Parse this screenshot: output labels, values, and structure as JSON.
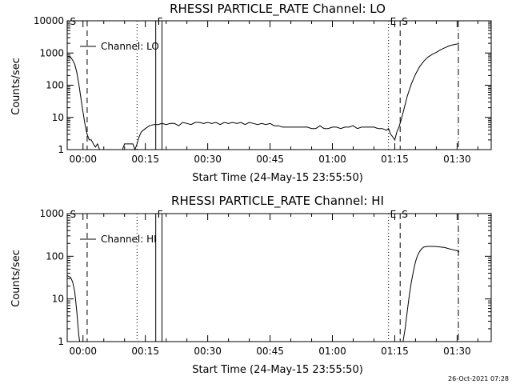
{
  "footer": {
    "date_stamp": "26-Oct-2021 07:28"
  },
  "chart_data": [
    {
      "type": "line",
      "title": "RHESSI PARTICLE_RATE Channel: LO",
      "xlabel": "Start Time (24-May-15 23:55:50)",
      "ylabel": "Counts/sec",
      "yscale": "log",
      "ylim": [
        1,
        10000
      ],
      "xlim_minutes": [
        -3.8,
        98.2
      ],
      "x_tick_labels": [
        "00:00",
        "00:15",
        "00:30",
        "00:45",
        "01:00",
        "01:15",
        "01:30"
      ],
      "x_tick_minutes": [
        0,
        15,
        30,
        45,
        60,
        75,
        90
      ],
      "y_tick_labels": [
        "1",
        "10",
        "100",
        "1000",
        "10000"
      ],
      "legend": {
        "label": "Channel: LO",
        "position": "top-left"
      },
      "event_markers": [
        {
          "label": "S",
          "minute": -3.5,
          "style": "none"
        },
        {
          "label": "",
          "minute": 1.0,
          "style": "dashed"
        },
        {
          "label": "",
          "minute": 13.0,
          "style": "dotted"
        },
        {
          "label": "F",
          "minute": 17.5,
          "style": "solid"
        },
        {
          "label": "",
          "minute": 19.0,
          "style": "solid"
        },
        {
          "label": "E",
          "minute": 73.5,
          "style": "dotted"
        },
        {
          "label": "S",
          "minute": 76.3,
          "style": "dashed"
        },
        {
          "label": "",
          "minute": 90.3,
          "style": "dashdot"
        }
      ],
      "series": [
        {
          "name": "Channel: LO",
          "segments": [
            [
              [
                -3.8,
                800
              ],
              [
                -3,
                750
              ],
              [
                -2.5,
                600
              ],
              [
                -2,
                450
              ],
              [
                -1.5,
                250
              ],
              [
                -1,
                110
              ],
              [
                -0.5,
                40
              ],
              [
                0,
                15
              ],
              [
                0.5,
                6
              ],
              [
                1,
                3
              ],
              [
                1.5,
                2
              ],
              [
                2,
                2
              ],
              [
                2.5,
                1.5
              ],
              [
                3,
                1.2
              ],
              [
                3.5,
                1.5
              ],
              [
                4,
                1
              ],
              [
                4.5,
                1
              ],
              [
                5,
                1
              ],
              [
                5.5,
                1
              ]
            ],
            [
              [
                9.5,
                1
              ],
              [
                10,
                1.5
              ],
              [
                11,
                1.5
              ],
              [
                12,
                1.5
              ],
              [
                12.5,
                1
              ],
              [
                13,
                1.5
              ],
              [
                13.5,
                2.5
              ],
              [
                14,
                3.5
              ],
              [
                14.5,
                4
              ],
              [
                15,
                4.5
              ],
              [
                15.5,
                5
              ],
              [
                16,
                5.5
              ],
              [
                17,
                6
              ],
              [
                18,
                6
              ],
              [
                19,
                6.5
              ],
              [
                20,
                6
              ],
              [
                21,
                6.5
              ],
              [
                22,
                6.5
              ],
              [
                23,
                5.5
              ],
              [
                24,
                7
              ],
              [
                25,
                6.5
              ],
              [
                26,
                6
              ],
              [
                27,
                7
              ],
              [
                28,
                7
              ],
              [
                29,
                6.5
              ],
              [
                30,
                7
              ],
              [
                31,
                6.5
              ],
              [
                32,
                7
              ],
              [
                33,
                6
              ],
              [
                34,
                7
              ],
              [
                35,
                6.5
              ],
              [
                36,
                7
              ],
              [
                37,
                6.5
              ],
              [
                38,
                7
              ],
              [
                39,
                6
              ],
              [
                40,
                7
              ],
              [
                41,
                6.5
              ],
              [
                42,
                6
              ],
              [
                43,
                6.5
              ],
              [
                44,
                6
              ],
              [
                45,
                6.5
              ],
              [
                46,
                5.5
              ],
              [
                47,
                5.5
              ],
              [
                48,
                5
              ],
              [
                49,
                5
              ],
              [
                50,
                5
              ],
              [
                51,
                5
              ],
              [
                52,
                5
              ],
              [
                53,
                5
              ],
              [
                54,
                5
              ],
              [
                55,
                4.5
              ],
              [
                56,
                4.5
              ],
              [
                57,
                5.5
              ],
              [
                58,
                4.5
              ],
              [
                59,
                4.5
              ],
              [
                60,
                5
              ],
              [
                61,
                5
              ],
              [
                62,
                4.5
              ],
              [
                63,
                5
              ],
              [
                64,
                5
              ],
              [
                65,
                5.5
              ],
              [
                66,
                4.5
              ],
              [
                67,
                5
              ],
              [
                68,
                5
              ],
              [
                69,
                5
              ],
              [
                70,
                5
              ],
              [
                71,
                4.5
              ],
              [
                72,
                4.5
              ],
              [
                73,
                4
              ],
              [
                73.5,
                4.5
              ],
              [
                74,
                3
              ],
              [
                74.5,
                2.5
              ],
              [
                75,
                2
              ],
              [
                75.5,
                3.5
              ],
              [
                76,
                5
              ],
              [
                76.5,
                8
              ],
              [
                77,
                14
              ],
              [
                77.5,
                25
              ],
              [
                78,
                45
              ],
              [
                79,
                110
              ],
              [
                80,
                220
              ],
              [
                81,
                380
              ],
              [
                82,
                560
              ],
              [
                83,
                750
              ],
              [
                84,
                900
              ],
              [
                85,
                1050
              ],
              [
                86,
                1250
              ],
              [
                87,
                1450
              ],
              [
                88,
                1650
              ],
              [
                89,
                1800
              ],
              [
                90,
                1900
              ],
              [
                90.5,
                1950
              ]
            ]
          ]
        }
      ]
    },
    {
      "type": "line",
      "title": "RHESSI PARTICLE_RATE Channel: HI",
      "xlabel": "Start Time (24-May-15 23:55:50)",
      "ylabel": "Counts/sec",
      "yscale": "log",
      "ylim": [
        1,
        1000
      ],
      "xlim_minutes": [
        -3.8,
        98.2
      ],
      "x_tick_labels": [
        "00:00",
        "00:15",
        "00:30",
        "00:45",
        "01:00",
        "01:15",
        "01:30"
      ],
      "x_tick_minutes": [
        0,
        15,
        30,
        45,
        60,
        75,
        90
      ],
      "y_tick_labels": [
        "1",
        "10",
        "100",
        "1000"
      ],
      "legend": {
        "label": "Channel: HI",
        "position": "top-left"
      },
      "event_markers": [
        {
          "label": "S",
          "minute": -3.5,
          "style": "none"
        },
        {
          "label": "",
          "minute": 1.0,
          "style": "dashed"
        },
        {
          "label": "",
          "minute": 13.0,
          "style": "dotted"
        },
        {
          "label": "F",
          "minute": 17.5,
          "style": "solid"
        },
        {
          "label": "",
          "minute": 19.0,
          "style": "solid"
        },
        {
          "label": "E",
          "minute": 73.5,
          "style": "dotted"
        },
        {
          "label": "S",
          "minute": 76.3,
          "style": "dashed"
        },
        {
          "label": "",
          "minute": 90.3,
          "style": "dashdot"
        }
      ],
      "series": [
        {
          "name": "Channel: HI",
          "segments": [
            [
              [
                -3.8,
                35
              ],
              [
                -3.5,
                34
              ],
              [
                -3,
                32
              ],
              [
                -2.5,
                25
              ],
              [
                -2,
                15
              ],
              [
                -1.5,
                5
              ],
              [
                -1,
                1.4
              ],
              [
                -0.8,
                1
              ]
            ],
            [
              [
                77,
                1
              ],
              [
                77.5,
                2
              ],
              [
                78,
                5
              ],
              [
                78.5,
                12
              ],
              [
                79,
                25
              ],
              [
                79.5,
                45
              ],
              [
                80,
                75
              ],
              [
                80.5,
                105
              ],
              [
                81,
                130
              ],
              [
                81.5,
                150
              ],
              [
                82,
                165
              ],
              [
                83,
                170
              ],
              [
                84,
                170
              ],
              [
                85,
                168
              ],
              [
                86,
                165
              ],
              [
                87,
                160
              ],
              [
                88,
                150
              ],
              [
                89,
                142
              ],
              [
                90,
                135
              ],
              [
                90.5,
                125
              ]
            ]
          ]
        }
      ]
    }
  ]
}
